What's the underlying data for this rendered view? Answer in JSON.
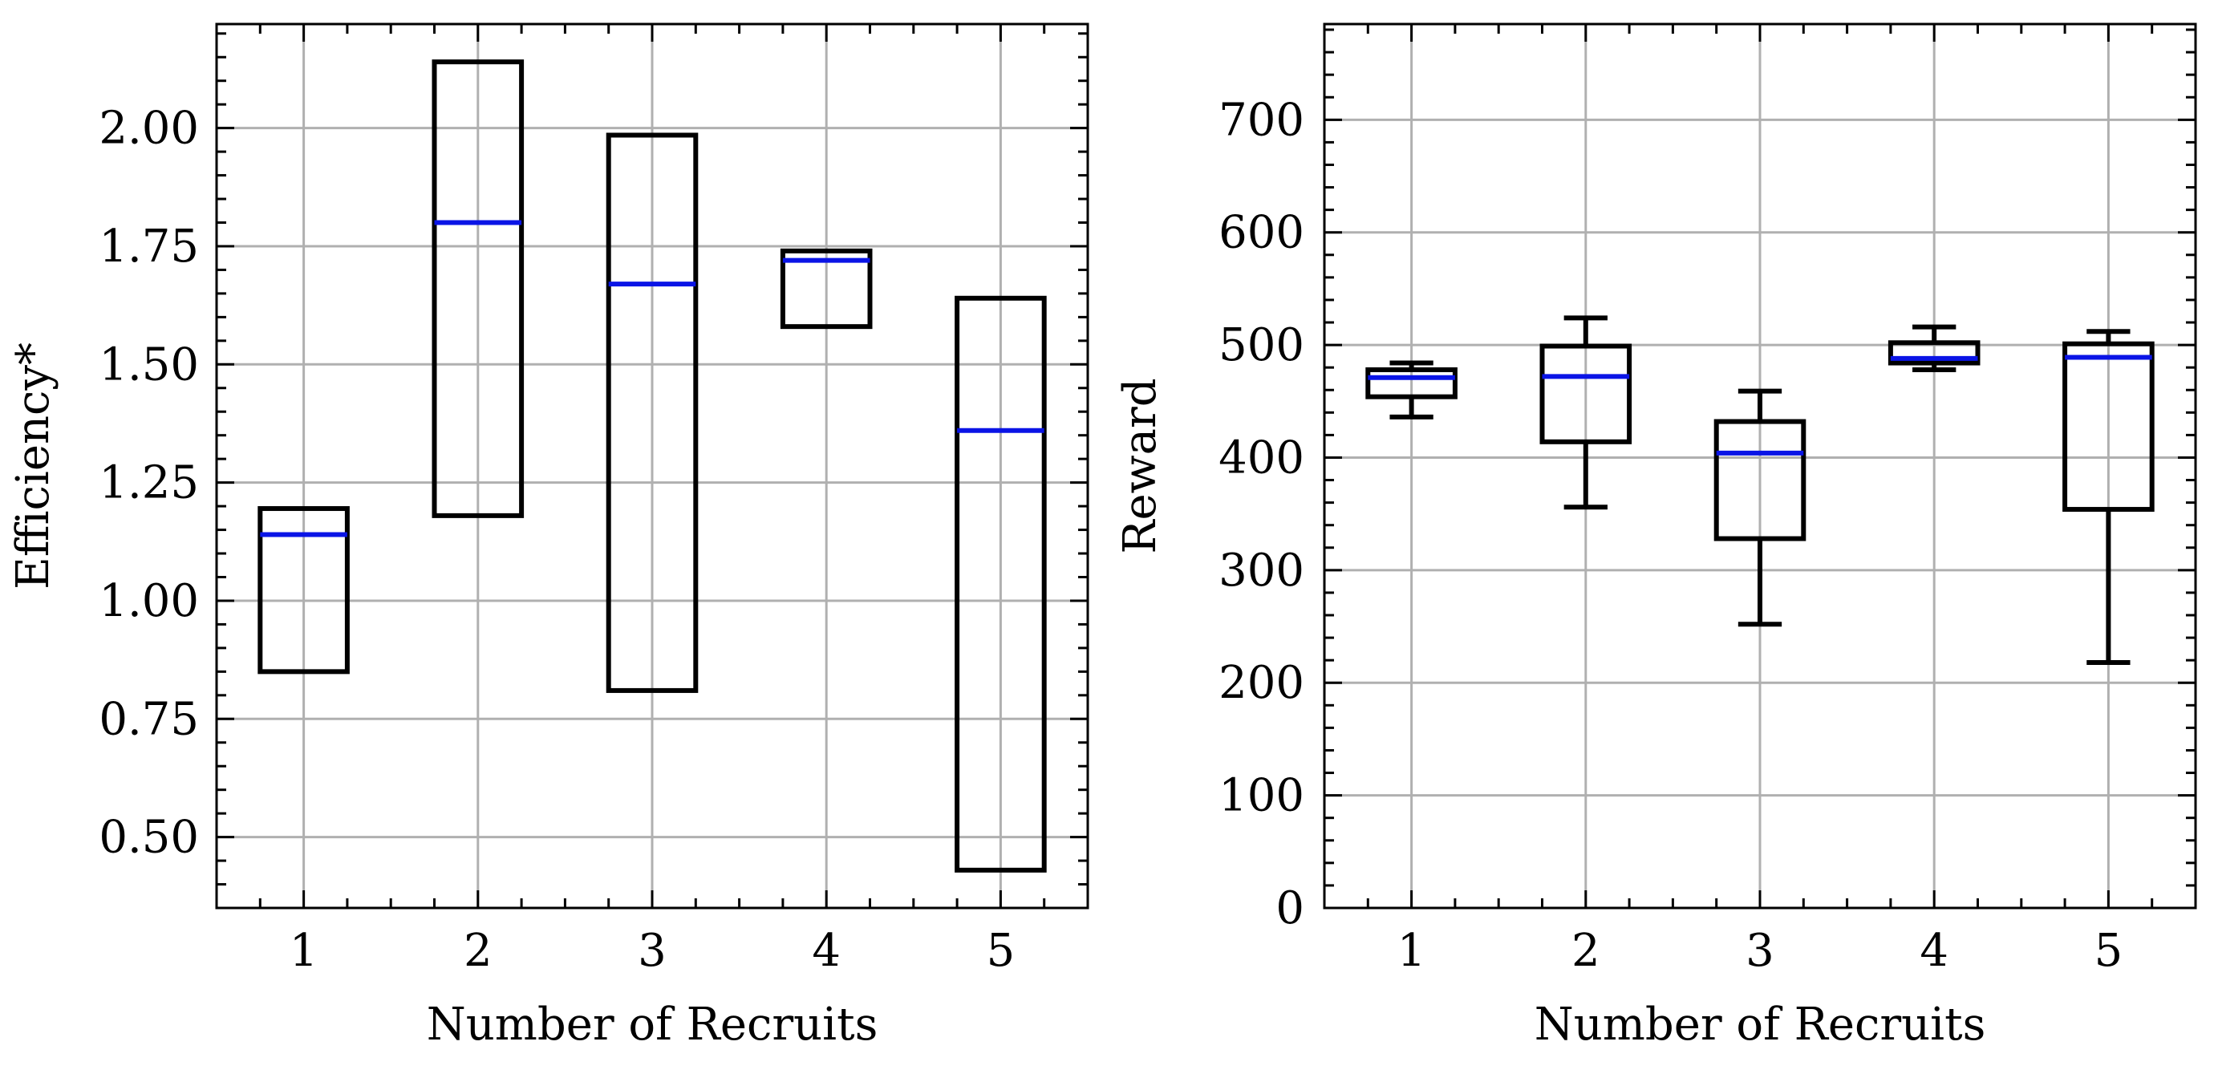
{
  "chart_data": [
    {
      "type": "box",
      "xlabel": "Number of Recruits",
      "ylabel": "Efficiency*",
      "categories": [
        "1",
        "2",
        "3",
        "4",
        "5"
      ],
      "ylim": [
        0.35,
        2.22
      ],
      "yticks": [
        0.5,
        0.75,
        1.0,
        1.25,
        1.5,
        1.75,
        2.0
      ],
      "ytick_labels": [
        "0.50",
        "0.75",
        "1.00",
        "1.25",
        "1.50",
        "1.75",
        "2.00"
      ],
      "grid": true,
      "colors": {
        "box": "#000000",
        "median": "#0a14e6",
        "grid": "#b0b0b0"
      },
      "boxes": [
        {
          "category": "1",
          "whisker_low": 0.85,
          "q1": 0.85,
          "median": 1.14,
          "q3": 1.195,
          "whisker_high": 1.195
        },
        {
          "category": "2",
          "whisker_low": 1.18,
          "q1": 1.18,
          "median": 1.8,
          "q3": 2.14,
          "whisker_high": 2.14
        },
        {
          "category": "3",
          "whisker_low": 0.81,
          "q1": 0.81,
          "median": 1.67,
          "q3": 1.985,
          "whisker_high": 1.985
        },
        {
          "category": "4",
          "whisker_low": 1.58,
          "q1": 1.58,
          "median": 1.72,
          "q3": 1.74,
          "whisker_high": 1.74
        },
        {
          "category": "5",
          "whisker_low": 0.43,
          "q1": 0.43,
          "median": 1.36,
          "q3": 1.64,
          "whisker_high": 1.64
        }
      ]
    },
    {
      "type": "box",
      "xlabel": "Number of Recruits",
      "ylabel": "Reward",
      "categories": [
        "1",
        "2",
        "3",
        "4",
        "5"
      ],
      "ylim": [
        0,
        785
      ],
      "yticks": [
        0,
        100,
        200,
        300,
        400,
        500,
        600,
        700
      ],
      "ytick_labels": [
        "0",
        "100",
        "200",
        "300",
        "400",
        "500",
        "600",
        "700"
      ],
      "grid": true,
      "colors": {
        "box": "#000000",
        "median": "#0a14e6",
        "grid": "#b0b0b0"
      },
      "boxes": [
        {
          "category": "1",
          "whisker_low": 436,
          "q1": 454,
          "median": 471,
          "q3": 478,
          "whisker_high": 484
        },
        {
          "category": "2",
          "whisker_low": 356,
          "q1": 414,
          "median": 472,
          "q3": 499,
          "whisker_high": 524
        },
        {
          "category": "3",
          "whisker_low": 252,
          "q1": 328,
          "median": 404,
          "q3": 432,
          "whisker_high": 459
        },
        {
          "category": "4",
          "whisker_low": 478,
          "q1": 484,
          "median": 488,
          "q3": 502,
          "whisker_high": 516
        },
        {
          "category": "5",
          "whisker_low": 218,
          "q1": 354,
          "median": 489,
          "q3": 501,
          "whisker_high": 512
        }
      ]
    }
  ]
}
